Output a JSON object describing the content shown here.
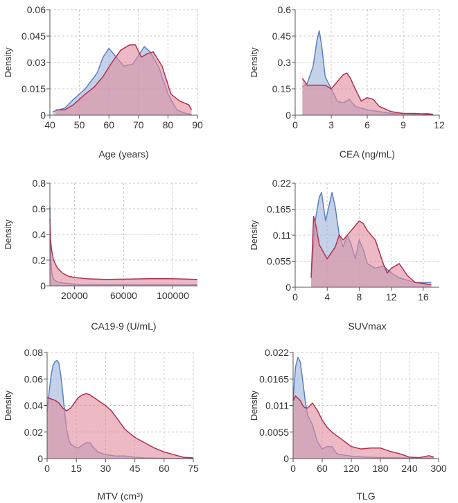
{
  "colors": {
    "blue_fill": "#9db4da",
    "blue_line": "#5b7fc0",
    "red_fill": "#e18a9d",
    "red_line": "#b0304f",
    "grid": "#c9c9c9"
  },
  "chart_data": [
    {
      "type": "area",
      "xlabel": "Age (years)",
      "ylabel": "Density",
      "xlim": [
        40,
        90
      ],
      "ylim": [
        0,
        0.06
      ],
      "xticks": [
        40,
        50,
        60,
        70,
        80,
        90
      ],
      "xtick_labels": [
        "40",
        "50",
        "60",
        "70",
        "80",
        "90"
      ],
      "yticks": [
        0,
        0.015,
        0.03,
        0.045,
        0.06
      ],
      "ytick_labels": [
        "0",
        "0.015",
        "0.03",
        "0.045",
        "0.06"
      ],
      "grid": true,
      "series": [
        {
          "color": "blue",
          "x": [
            41,
            45,
            48,
            52,
            56,
            58,
            60,
            62,
            65,
            68,
            70,
            72,
            74,
            77,
            80,
            83,
            86,
            88
          ],
          "y": [
            0.002,
            0.004,
            0.009,
            0.015,
            0.024,
            0.033,
            0.038,
            0.034,
            0.028,
            0.029,
            0.034,
            0.039,
            0.036,
            0.027,
            0.012,
            0.003,
            0.001,
            0.0005
          ]
        },
        {
          "color": "red",
          "x": [
            42,
            45,
            48,
            52,
            55,
            58,
            61,
            64,
            67,
            69,
            71,
            73,
            75,
            78,
            81,
            84,
            87,
            88
          ],
          "y": [
            0.003,
            0.003,
            0.006,
            0.012,
            0.016,
            0.022,
            0.03,
            0.037,
            0.04,
            0.04,
            0.033,
            0.035,
            0.036,
            0.028,
            0.012,
            0.008,
            0.006,
            0.003
          ]
        }
      ]
    },
    {
      "type": "area",
      "xlabel": "CEA (ng/mL)",
      "ylabel": "Density",
      "xlim": [
        0,
        12
      ],
      "ylim": [
        0,
        0.6
      ],
      "xticks": [
        0,
        3,
        6,
        9,
        12
      ],
      "xtick_labels": [
        "0",
        "3",
        "6",
        "9",
        "12"
      ],
      "yticks": [
        0,
        0.15,
        0.3,
        0.45,
        0.6
      ],
      "ytick_labels": [
        "0",
        "0.15",
        "0.3",
        "0.45",
        "0.6"
      ],
      "grid": true,
      "series": [
        {
          "color": "blue",
          "x": [
            0.6,
            1.0,
            1.5,
            1.8,
            2.0,
            2.2,
            2.5,
            3.0,
            3.5,
            4.0,
            4.5,
            5.0,
            6.0,
            7.0,
            8.0,
            9.0,
            10.0,
            11.0,
            11.5
          ],
          "y": [
            0.16,
            0.18,
            0.28,
            0.42,
            0.48,
            0.4,
            0.22,
            0.15,
            0.08,
            0.07,
            0.09,
            0.05,
            0.03,
            0.02,
            0.01,
            0.01,
            0.005,
            0.01,
            0.005
          ]
        },
        {
          "color": "red",
          "x": [
            0.6,
            1.0,
            1.5,
            2.0,
            2.5,
            3.0,
            3.5,
            4.0,
            4.3,
            4.6,
            5.0,
            5.5,
            6.0,
            6.5,
            7.0,
            8.0,
            9.0,
            10.0,
            11.0,
            11.5
          ],
          "y": [
            0.21,
            0.17,
            0.17,
            0.17,
            0.17,
            0.15,
            0.19,
            0.23,
            0.24,
            0.21,
            0.15,
            0.08,
            0.1,
            0.09,
            0.05,
            0.02,
            0.01,
            0.01,
            0.005,
            0.002
          ]
        }
      ]
    },
    {
      "type": "area",
      "xlabel": "CA19-9 (U/mL)",
      "ylabel": "Density",
      "xlim": [
        0,
        120000
      ],
      "ylim": [
        0,
        0.8
      ],
      "xticks": [
        20000,
        60000,
        100000
      ],
      "xtick_labels": [
        "20000",
        "60000",
        "100000"
      ],
      "yticks": [
        0,
        0.2,
        0.4,
        0.6,
        0.8
      ],
      "ytick_labels": [
        "0",
        "0.2",
        "0.4",
        "0.6",
        "0.8"
      ],
      "grid": true,
      "series": [
        {
          "color": "blue",
          "x": [
            0,
            300,
            800,
            1500,
            3000,
            6000,
            12000,
            25000,
            60000,
            100000,
            120000
          ],
          "y": [
            0.62,
            0.35,
            0.2,
            0.1,
            0.05,
            0.03,
            0.02,
            0.01,
            0.01,
            0.01,
            0.01
          ]
        },
        {
          "color": "red",
          "x": [
            0,
            500,
            1500,
            3000,
            6000,
            10000,
            15000,
            20000,
            30000,
            45000,
            60000,
            80000,
            100000,
            120000
          ],
          "y": [
            0.52,
            0.36,
            0.27,
            0.2,
            0.14,
            0.1,
            0.075,
            0.065,
            0.055,
            0.05,
            0.052,
            0.055,
            0.055,
            0.05
          ]
        }
      ]
    },
    {
      "type": "area",
      "xlabel": "SUVmax",
      "ylabel": "Density",
      "xlim": [
        0,
        18
      ],
      "ylim": [
        0,
        0.22
      ],
      "xticks": [
        0,
        4,
        8,
        12,
        16
      ],
      "xtick_labels": [
        "0",
        "4",
        "8",
        "12",
        "16"
      ],
      "yticks": [
        0,
        0.055,
        0.11,
        0.165,
        0.22
      ],
      "ytick_labels": [
        "0",
        "0.055",
        "0.11",
        "0.165",
        "0.22"
      ],
      "grid": true,
      "series": [
        {
          "color": "blue",
          "x": [
            2.0,
            2.5,
            3.0,
            3.3,
            3.8,
            4.2,
            4.6,
            5.0,
            5.5,
            6.0,
            6.5,
            7.0,
            7.5,
            8.0,
            8.5,
            9.0,
            10.0,
            11.0,
            12.0,
            13.0,
            14.0,
            15.0,
            16.0,
            17.0
          ],
          "y": [
            0.02,
            0.14,
            0.19,
            0.2,
            0.14,
            0.17,
            0.2,
            0.17,
            0.11,
            0.085,
            0.11,
            0.09,
            0.06,
            0.1,
            0.08,
            0.05,
            0.04,
            0.045,
            0.03,
            0.02,
            0.015,
            0.01,
            0.01,
            0.01
          ]
        },
        {
          "color": "red",
          "x": [
            2.0,
            2.3,
            2.6,
            3.0,
            4.0,
            5.0,
            5.5,
            6.0,
            7.0,
            7.5,
            8.0,
            8.5,
            9.0,
            10.0,
            11.0,
            11.5,
            12.0,
            13.0,
            14.0,
            15.0,
            16.0,
            17.0
          ],
          "y": [
            0.02,
            0.15,
            0.13,
            0.09,
            0.06,
            0.085,
            0.11,
            0.1,
            0.12,
            0.13,
            0.14,
            0.135,
            0.12,
            0.1,
            0.05,
            0.03,
            0.04,
            0.05,
            0.025,
            0.01,
            0.008,
            0.005
          ]
        }
      ]
    },
    {
      "type": "area",
      "xlabel": "MTV (cm³)",
      "ylabel": "Density",
      "xlim": [
        0,
        75
      ],
      "ylim": [
        0,
        0.08
      ],
      "xticks": [
        0,
        15,
        30,
        45,
        60,
        75
      ],
      "xtick_labels": [
        "0",
        "15",
        "30",
        "45",
        "60",
        "75"
      ],
      "yticks": [
        0,
        0.02,
        0.04,
        0.06,
        0.08
      ],
      "ytick_labels": [
        "0",
        "0.02",
        "0.04",
        "0.06",
        "0.08"
      ],
      "grid": true,
      "series": [
        {
          "color": "blue",
          "x": [
            0,
            1,
            2,
            3,
            4,
            5,
            6,
            7,
            8,
            9,
            10,
            11,
            12,
            14,
            16,
            18,
            20,
            22,
            24,
            26,
            30,
            35,
            40,
            45,
            50,
            60,
            75
          ],
          "y": [
            0.035,
            0.05,
            0.062,
            0.07,
            0.073,
            0.074,
            0.072,
            0.063,
            0.05,
            0.035,
            0.022,
            0.015,
            0.011,
            0.009,
            0.008,
            0.01,
            0.012,
            0.012,
            0.008,
            0.005,
            0.003,
            0.002,
            0.002,
            0.001,
            0.0005,
            0.0002,
            0
          ]
        },
        {
          "color": "red",
          "x": [
            0,
            2,
            4,
            6,
            8,
            10,
            12,
            14,
            16,
            18,
            20,
            22,
            25,
            28,
            30,
            33,
            36,
            40,
            45,
            50,
            55,
            60,
            65,
            70,
            75
          ],
          "y": [
            0.046,
            0.045,
            0.044,
            0.042,
            0.038,
            0.036,
            0.038,
            0.042,
            0.046,
            0.048,
            0.049,
            0.048,
            0.045,
            0.042,
            0.04,
            0.036,
            0.03,
            0.022,
            0.016,
            0.012,
            0.008,
            0.005,
            0.003,
            0.001,
            0.0005
          ]
        }
      ]
    },
    {
      "type": "area",
      "xlabel": "TLG",
      "ylabel": "Density",
      "xlim": [
        0,
        300
      ],
      "ylim": [
        0,
        0.022
      ],
      "xticks": [
        0,
        60,
        120,
        180,
        240,
        300
      ],
      "xtick_labels": [
        "0",
        "60",
        "120",
        "180",
        "240",
        "300"
      ],
      "yticks": [
        0,
        0.0055,
        0.011,
        0.0165,
        0.022
      ],
      "ytick_labels": [
        "0",
        "0.0055",
        "0.011",
        "0.0165",
        "0.022"
      ],
      "grid": true,
      "series": [
        {
          "color": "blue",
          "x": [
            0,
            5,
            10,
            15,
            20,
            25,
            30,
            35,
            40,
            50,
            60,
            70,
            80,
            90,
            100,
            120,
            150,
            180,
            210,
            240,
            270,
            290
          ],
          "y": [
            0.012,
            0.019,
            0.021,
            0.02,
            0.016,
            0.012,
            0.009,
            0.008,
            0.007,
            0.0035,
            0.002,
            0.0025,
            0.0025,
            0.001,
            0.0008,
            0.0005,
            0.0003,
            0.0002,
            0.0002,
            0.0001,
            0.0001,
            0.0001
          ]
        },
        {
          "color": "red",
          "x": [
            0,
            5,
            10,
            15,
            20,
            25,
            30,
            40,
            50,
            60,
            70,
            80,
            100,
            120,
            140,
            160,
            180,
            200,
            220,
            240,
            260,
            280,
            290
          ],
          "y": [
            0.012,
            0.013,
            0.0125,
            0.012,
            0.011,
            0.0105,
            0.0105,
            0.0115,
            0.01,
            0.008,
            0.0065,
            0.0055,
            0.004,
            0.0025,
            0.002,
            0.0022,
            0.0022,
            0.0015,
            0.001,
            0.0003,
            0.0002,
            0.0006,
            0.0003
          ]
        }
      ]
    }
  ]
}
